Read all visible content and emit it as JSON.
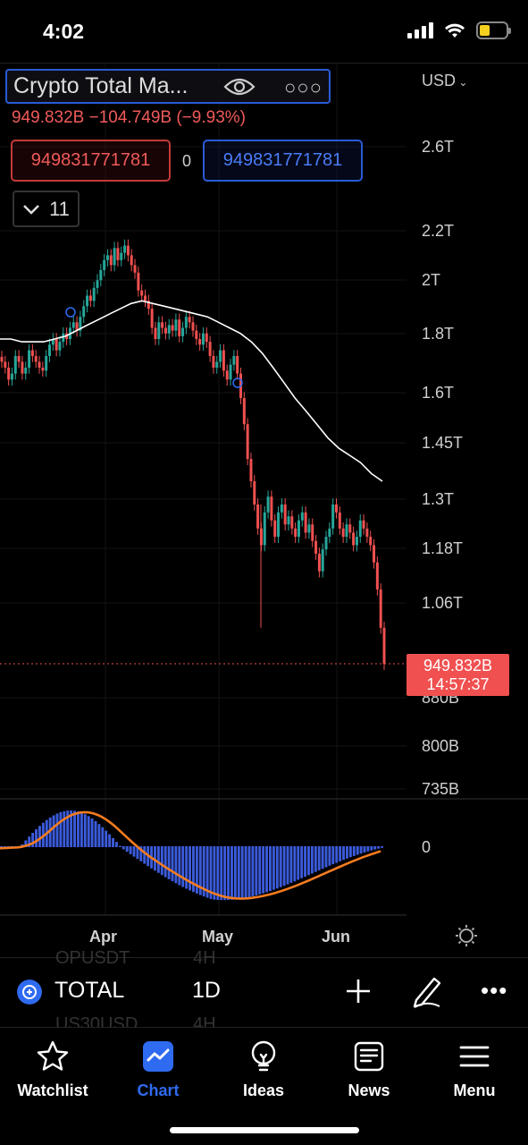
{
  "status_bar": {
    "time": "4:02"
  },
  "symbol": {
    "name": "Crypto Total Ma...",
    "price_change": "949.832B  −104.749B (−9.93%)",
    "bid": "949831771781",
    "spread": "0",
    "ask": "949831771781",
    "indicator_count": "11",
    "currency": "USD"
  },
  "chart_data": {
    "type": "candlestick",
    "price_axis": [
      "2.6T",
      "2.2T",
      "2T",
      "1.8T",
      "1.6T",
      "1.45T",
      "1.3T",
      "1.18T",
      "1.06T",
      "880B",
      "800B",
      "735B"
    ],
    "time_axis": [
      "Apr",
      "May",
      "Jun"
    ],
    "last_price": "949.832B",
    "countdown": "14:57:37",
    "macd_zero_label": "0",
    "series": [
      {
        "values": [
          1.72,
          1.7,
          1.66,
          1.68,
          1.74,
          1.72,
          1.68,
          1.7,
          1.76,
          1.74,
          1.72,
          1.7,
          1.69,
          1.74,
          1.78,
          1.8,
          1.76,
          1.79,
          1.82,
          1.8,
          1.84,
          1.86,
          1.83,
          1.88,
          1.92,
          1.96,
          1.94,
          1.99,
          2.02,
          2.06,
          2.1,
          2.12,
          2.08,
          2.15,
          2.1,
          2.13,
          2.16,
          2.12,
          2.08,
          2.05,
          1.98,
          1.96,
          1.94,
          1.91,
          1.84,
          1.8,
          1.86,
          1.84,
          1.82,
          1.85,
          1.83,
          1.87,
          1.81,
          1.84,
          1.88,
          1.86,
          1.83,
          1.8,
          1.78,
          1.82,
          1.79,
          1.74,
          1.7,
          1.72,
          1.76,
          1.69,
          1.66,
          1.71,
          1.74,
          1.68,
          1.6,
          1.52,
          1.42,
          1.36,
          1.3,
          1.24,
          1.2,
          1.28,
          1.32,
          1.26,
          1.22,
          1.28,
          1.3,
          1.25,
          1.27,
          1.24,
          1.22,
          1.26,
          1.28,
          1.23,
          1.25,
          1.21,
          1.18,
          1.14,
          1.19,
          1.22,
          1.24,
          1.3,
          1.28,
          1.24,
          1.22,
          1.25,
          1.23,
          1.2,
          1.22,
          1.26,
          1.24,
          1.22,
          1.2,
          1.16,
          1.1,
          1.02,
          0.95
        ]
      },
      {
        "values": [
          1.8,
          1.8,
          1.79,
          1.79,
          1.79,
          1.8,
          1.81,
          1.83,
          1.85,
          1.87,
          1.89,
          1.91,
          1.93,
          1.94,
          1.93,
          1.92,
          1.91,
          1.9,
          1.89,
          1.88,
          1.86,
          1.84,
          1.82,
          1.79,
          1.75,
          1.7,
          1.65,
          1.6,
          1.56,
          1.52,
          1.48,
          1.45,
          1.43,
          1.41,
          1.38,
          1.36
        ]
      }
    ]
  },
  "toolbar": {
    "ghost_symbol_1": "OPUSDT",
    "ghost_interval_1": "4H",
    "ticker": "TOTAL",
    "interval": "1D",
    "ghost_symbol_2": "US30USD",
    "ghost_interval_2": "4H"
  },
  "nav": {
    "items": [
      {
        "label": "Watchlist",
        "icon": "star-icon"
      },
      {
        "label": "Chart",
        "icon": "chart-icon"
      },
      {
        "label": "Ideas",
        "icon": "lightbulb-icon"
      },
      {
        "label": "News",
        "icon": "news-icon"
      },
      {
        "label": "Menu",
        "icon": "hamburger-icon"
      }
    ],
    "active": "Chart"
  },
  "colors": {
    "up": "#26a69a",
    "down": "#f05050",
    "accent": "#2f6bf0",
    "macd_hist": "#3b5bdb",
    "signal_line": "#f57c20"
  }
}
